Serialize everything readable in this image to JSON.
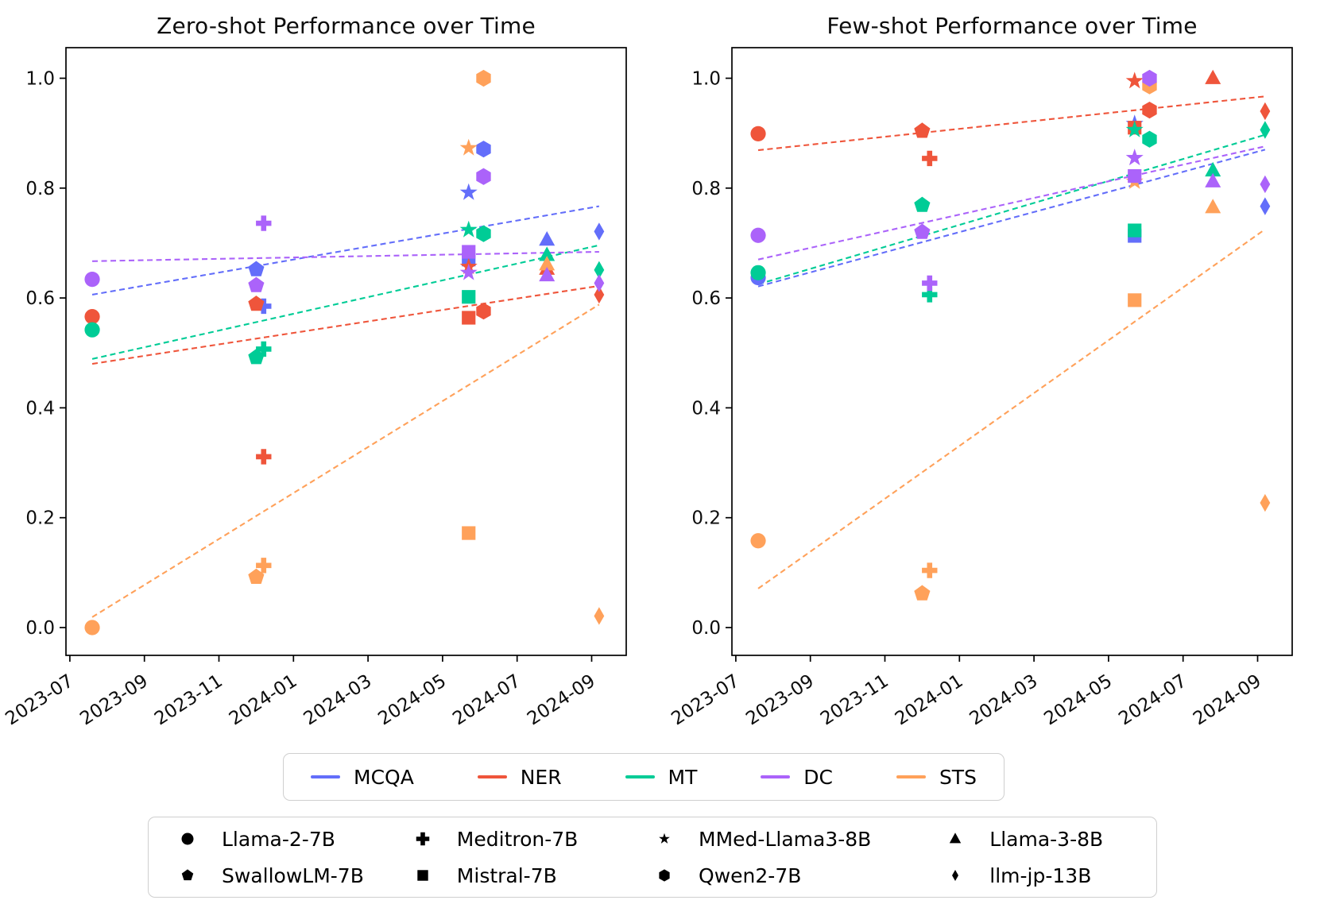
{
  "figure": {
    "background": "#ffffff",
    "text_color": "#000000"
  },
  "tasks": [
    {
      "name": "MCQA",
      "color": "#636EFA"
    },
    {
      "name": "NER",
      "color": "#EF553B"
    },
    {
      "name": "MT",
      "color": "#00CC96"
    },
    {
      "name": "DC",
      "color": "#AB63FA"
    },
    {
      "name": "STS",
      "color": "#FFA15A"
    }
  ],
  "models": [
    {
      "name": "Llama-2-7B",
      "marker": "circle"
    },
    {
      "name": "Meditron-7B",
      "marker": "plus"
    },
    {
      "name": "MMed-Llama3-8B",
      "marker": "star"
    },
    {
      "name": "Llama-3-8B",
      "marker": "triangle"
    },
    {
      "name": "SwallowLM-7B",
      "marker": "pentagon"
    },
    {
      "name": "Mistral-7B",
      "marker": "square"
    },
    {
      "name": "Qwen2-7B",
      "marker": "hexagon"
    },
    {
      "name": "llm-jp-13B",
      "marker": "diamond"
    }
  ],
  "chart_data": [
    {
      "type": "scatter",
      "title": "Zero-shot Performance over Time",
      "xlabel": "",
      "ylabel": "",
      "x_unit": "months since 2023-07",
      "xticks": [
        0,
        2,
        4,
        6,
        8,
        10,
        12,
        14
      ],
      "xtick_labels": [
        "2023-07",
        "2023-09",
        "2023-11",
        "2024-01",
        "2024-03",
        "2024-05",
        "2024-07",
        "2024-09"
      ],
      "ytick_labels": [
        "0.0",
        "0.2",
        "0.4",
        "0.6",
        "0.8",
        "1.0"
      ],
      "yticks": [
        0.0,
        0.2,
        0.4,
        0.6,
        0.8,
        1.0
      ],
      "xlim": [
        -0.1,
        14.95
      ],
      "ylim": [
        -0.05,
        1.055
      ],
      "grid": false,
      "z_order": [
        "MCQA",
        "NER",
        "MT",
        "STS",
        "DC"
      ],
      "series": [
        {
          "task": "MCQA",
          "color": "#636EFA",
          "trend": {
            "x": [
              0.6,
              14.2
            ],
            "y": [
              0.606,
              0.767
            ]
          },
          "points": [
            {
              "model": "SwallowLM-7B",
              "date": "2023-12",
              "x": 5.0,
              "y": 0.652
            },
            {
              "model": "Meditron-7B",
              "date": "2023-12",
              "x": 5.2,
              "y": 0.585
            },
            {
              "model": "MMed-Llama3-8B",
              "date": "2024-05",
              "x": 10.7,
              "y": 0.792
            },
            {
              "model": "Mistral-7B",
              "date": "2024-05",
              "x": 10.7,
              "y": 0.67
            },
            {
              "model": "Qwen2-7B",
              "date": "2024-06",
              "x": 11.1,
              "y": 0.871
            },
            {
              "model": "Llama-3-8B",
              "date": "2024-07",
              "x": 12.8,
              "y": 0.706
            },
            {
              "model": "llm-jp-13B",
              "date": "2024-09",
              "x": 14.2,
              "y": 0.721
            }
          ]
        },
        {
          "task": "NER",
          "color": "#EF553B",
          "trend": {
            "x": [
              0.6,
              14.2
            ],
            "y": [
              0.48,
              0.622
            ]
          },
          "points": [
            {
              "model": "Llama-2-7B",
              "date": "2023-07",
              "x": 0.6,
              "y": 0.566
            },
            {
              "model": "SwallowLM-7B",
              "date": "2023-12",
              "x": 5.0,
              "y": 0.589
            },
            {
              "model": "Meditron-7B",
              "date": "2023-12",
              "x": 5.2,
              "y": 0.311
            },
            {
              "model": "MMed-Llama3-8B",
              "date": "2024-05",
              "x": 10.7,
              "y": 0.657
            },
            {
              "model": "Mistral-7B",
              "date": "2024-05",
              "x": 10.7,
              "y": 0.564
            },
            {
              "model": "Qwen2-7B",
              "date": "2024-06",
              "x": 11.1,
              "y": 0.576
            },
            {
              "model": "Llama-3-8B",
              "date": "2024-07",
              "x": 12.8,
              "y": 0.653
            },
            {
              "model": "llm-jp-13B",
              "date": "2024-09",
              "x": 14.2,
              "y": 0.606
            }
          ]
        },
        {
          "task": "MT",
          "color": "#00CC96",
          "trend": {
            "x": [
              0.6,
              14.2
            ],
            "y": [
              0.489,
              0.696
            ]
          },
          "points": [
            {
              "model": "Llama-2-7B",
              "date": "2023-07",
              "x": 0.6,
              "y": 0.542
            },
            {
              "model": "SwallowLM-7B",
              "date": "2023-12",
              "x": 5.0,
              "y": 0.492
            },
            {
              "model": "Meditron-7B",
              "date": "2023-12",
              "x": 5.2,
              "y": 0.507
            },
            {
              "model": "MMed-Llama3-8B",
              "date": "2024-05",
              "x": 10.7,
              "y": 0.724
            },
            {
              "model": "Mistral-7B",
              "date": "2024-05",
              "x": 10.7,
              "y": 0.602
            },
            {
              "model": "Qwen2-7B",
              "date": "2024-06",
              "x": 11.1,
              "y": 0.717
            },
            {
              "model": "Llama-3-8B",
              "date": "2024-07",
              "x": 12.8,
              "y": 0.678
            },
            {
              "model": "llm-jp-13B",
              "date": "2024-09",
              "x": 14.2,
              "y": 0.651
            }
          ]
        },
        {
          "task": "DC",
          "color": "#AB63FA",
          "trend": {
            "x": [
              0.6,
              14.2
            ],
            "y": [
              0.667,
              0.684
            ]
          },
          "points": [
            {
              "model": "Llama-2-7B",
              "date": "2023-07",
              "x": 0.6,
              "y": 0.634
            },
            {
              "model": "SwallowLM-7B",
              "date": "2023-12",
              "x": 5.0,
              "y": 0.623
            },
            {
              "model": "Meditron-7B",
              "date": "2023-12",
              "x": 5.2,
              "y": 0.736
            },
            {
              "model": "MMed-Llama3-8B",
              "date": "2024-05",
              "x": 10.7,
              "y": 0.646
            },
            {
              "model": "Mistral-7B",
              "date": "2024-05",
              "x": 10.7,
              "y": 0.684
            },
            {
              "model": "Qwen2-7B",
              "date": "2024-06",
              "x": 11.1,
              "y": 0.821
            },
            {
              "model": "Llama-3-8B",
              "date": "2024-07",
              "x": 12.8,
              "y": 0.641
            },
            {
              "model": "llm-jp-13B",
              "date": "2024-09",
              "x": 14.2,
              "y": 0.627
            }
          ]
        },
        {
          "task": "STS",
          "color": "#FFA15A",
          "trend": {
            "x": [
              0.6,
              14.2
            ],
            "y": [
              0.019,
              0.588
            ]
          },
          "points": [
            {
              "model": "Llama-2-7B",
              "date": "2023-07",
              "x": 0.6,
              "y": 0.0
            },
            {
              "model": "SwallowLM-7B",
              "date": "2023-12",
              "x": 5.0,
              "y": 0.092
            },
            {
              "model": "Meditron-7B",
              "date": "2023-12",
              "x": 5.2,
              "y": 0.113
            },
            {
              "model": "MMed-Llama3-8B",
              "date": "2024-05",
              "x": 10.7,
              "y": 0.873
            },
            {
              "model": "Mistral-7B",
              "date": "2024-05",
              "x": 10.7,
              "y": 0.172
            },
            {
              "model": "Qwen2-7B",
              "date": "2024-06",
              "x": 11.1,
              "y": 1.0
            },
            {
              "model": "Llama-3-8B",
              "date": "2024-07",
              "x": 12.8,
              "y": 0.661
            },
            {
              "model": "llm-jp-13B",
              "date": "2024-09",
              "x": 14.2,
              "y": 0.021
            }
          ]
        }
      ]
    },
    {
      "type": "scatter",
      "title": "Few-shot Performance over Time",
      "xlabel": "",
      "ylabel": "",
      "x_unit": "months since 2023-07",
      "xticks": [
        0,
        2,
        4,
        6,
        8,
        10,
        12,
        14
      ],
      "xtick_labels": [
        "2023-07",
        "2023-09",
        "2023-11",
        "2024-01",
        "2024-03",
        "2024-05",
        "2024-07",
        "2024-09"
      ],
      "ytick_labels": [
        "0.0",
        "0.2",
        "0.4",
        "0.6",
        "0.8",
        "1.0"
      ],
      "yticks": [
        0.0,
        0.2,
        0.4,
        0.6,
        0.8,
        1.0
      ],
      "xlim": [
        -0.1,
        14.95
      ],
      "ylim": [
        -0.05,
        1.055
      ],
      "grid": false,
      "z_order": [
        "MCQA",
        "NER",
        "MT",
        "STS",
        "DC"
      ],
      "series": [
        {
          "task": "MCQA",
          "color": "#636EFA",
          "trend": {
            "x": [
              0.6,
              14.2
            ],
            "y": [
              0.621,
              0.87
            ]
          },
          "points": [
            {
              "model": "Llama-2-7B",
              "date": "2023-07",
              "x": 0.6,
              "y": 0.637
            },
            {
              "model": "MMed-Llama3-8B",
              "date": "2024-05",
              "x": 10.7,
              "y": 0.917
            },
            {
              "model": "Mistral-7B",
              "date": "2024-05",
              "x": 10.7,
              "y": 0.713
            },
            {
              "model": "llm-jp-13B",
              "date": "2024-09",
              "x": 14.2,
              "y": 0.767
            }
          ]
        },
        {
          "task": "NER",
          "color": "#EF553B",
          "trend": {
            "x": [
              0.6,
              14.2
            ],
            "y": [
              0.869,
              0.967
            ]
          },
          "points": [
            {
              "model": "Llama-2-7B",
              "date": "2023-07",
              "x": 0.6,
              "y": 0.899
            },
            {
              "model": "SwallowLM-7B",
              "date": "2023-12",
              "x": 5.0,
              "y": 0.904
            },
            {
              "model": "Meditron-7B",
              "date": "2023-12",
              "x": 5.2,
              "y": 0.854
            },
            {
              "model": "MMed-Llama3-8B",
              "date": "2024-05",
              "x": 10.7,
              "y": 0.995
            },
            {
              "model": "Mistral-7B",
              "date": "2024-05",
              "x": 10.7,
              "y": 0.91
            },
            {
              "model": "Qwen2-7B",
              "date": "2024-06",
              "x": 11.1,
              "y": 0.942
            },
            {
              "model": "Llama-3-8B",
              "date": "2024-07",
              "x": 12.8,
              "y": 1.0
            },
            {
              "model": "llm-jp-13B",
              "date": "2024-09",
              "x": 14.2,
              "y": 0.94
            }
          ]
        },
        {
          "task": "MT",
          "color": "#00CC96",
          "trend": {
            "x": [
              0.6,
              14.2
            ],
            "y": [
              0.625,
              0.897
            ]
          },
          "points": [
            {
              "model": "Llama-2-7B",
              "date": "2023-07",
              "x": 0.6,
              "y": 0.646
            },
            {
              "model": "SwallowLM-7B",
              "date": "2023-12",
              "x": 5.0,
              "y": 0.769
            },
            {
              "model": "Meditron-7B",
              "date": "2023-12",
              "x": 5.2,
              "y": 0.606
            },
            {
              "model": "MMed-Llama3-8B",
              "date": "2024-05",
              "x": 10.7,
              "y": 0.906
            },
            {
              "model": "Mistral-7B",
              "date": "2024-05",
              "x": 10.7,
              "y": 0.723
            },
            {
              "model": "Qwen2-7B",
              "date": "2024-06",
              "x": 11.1,
              "y": 0.889
            },
            {
              "model": "Llama-3-8B",
              "date": "2024-07",
              "x": 12.8,
              "y": 0.832
            },
            {
              "model": "llm-jp-13B",
              "date": "2024-09",
              "x": 14.2,
              "y": 0.906
            }
          ]
        },
        {
          "task": "DC",
          "color": "#AB63FA",
          "trend": {
            "x": [
              0.6,
              14.2
            ],
            "y": [
              0.67,
              0.876
            ]
          },
          "points": [
            {
              "model": "Llama-2-7B",
              "date": "2023-07",
              "x": 0.6,
              "y": 0.714
            },
            {
              "model": "SwallowLM-7B",
              "date": "2023-12",
              "x": 5.0,
              "y": 0.72
            },
            {
              "model": "Meditron-7B",
              "date": "2023-12",
              "x": 5.2,
              "y": 0.627
            },
            {
              "model": "MMed-Llama3-8B",
              "date": "2024-05",
              "x": 10.7,
              "y": 0.855
            },
            {
              "model": "Mistral-7B",
              "date": "2024-05",
              "x": 10.7,
              "y": 0.822
            },
            {
              "model": "Qwen2-7B",
              "date": "2024-06",
              "x": 11.1,
              "y": 1.0
            },
            {
              "model": "Llama-3-8B",
              "date": "2024-07",
              "x": 12.8,
              "y": 0.812
            },
            {
              "model": "llm-jp-13B",
              "date": "2024-09",
              "x": 14.2,
              "y": 0.807
            }
          ]
        },
        {
          "task": "STS",
          "color": "#FFA15A",
          "trend": {
            "x": [
              0.6,
              14.2
            ],
            "y": [
              0.071,
              0.725
            ]
          },
          "points": [
            {
              "model": "Llama-2-7B",
              "date": "2023-07",
              "x": 0.6,
              "y": 0.158
            },
            {
              "model": "SwallowLM-7B",
              "date": "2023-12",
              "x": 5.0,
              "y": 0.062
            },
            {
              "model": "Meditron-7B",
              "date": "2023-12",
              "x": 5.2,
              "y": 0.104
            },
            {
              "model": "MMed-Llama3-8B",
              "date": "2024-05",
              "x": 10.7,
              "y": 0.812
            },
            {
              "model": "Mistral-7B",
              "date": "2024-05",
              "x": 10.7,
              "y": 0.596
            },
            {
              "model": "Qwen2-7B",
              "date": "2024-06",
              "x": 11.1,
              "y": 0.986
            },
            {
              "model": "Llama-3-8B",
              "date": "2024-07",
              "x": 12.8,
              "y": 0.765
            },
            {
              "model": "llm-jp-13B",
              "date": "2024-09",
              "x": 14.2,
              "y": 0.227
            }
          ]
        }
      ]
    }
  ]
}
